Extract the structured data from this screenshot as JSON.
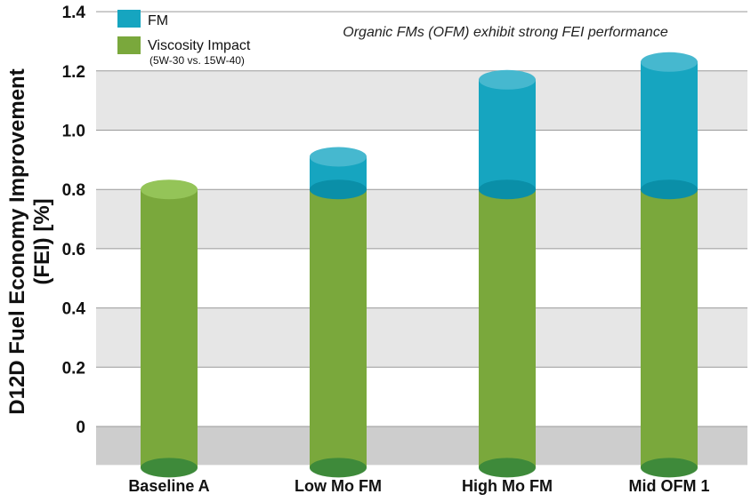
{
  "chart_data": {
    "type": "bar",
    "stacked": true,
    "categories": [
      "Baseline A",
      "Low Mo FM",
      "High Mo FM",
      "Mid OFM 1"
    ],
    "series": [
      {
        "name": "Viscosity Impact",
        "values": [
          0.8,
          0.8,
          0.8,
          0.8
        ],
        "color": "#7aa83c"
      },
      {
        "name": "FM",
        "values": [
          0.0,
          0.11,
          0.37,
          0.43
        ],
        "color": "#16a5c0"
      }
    ],
    "legend": {
      "position": "top-left",
      "entries": [
        {
          "label": "FM",
          "color": "#16a5c0"
        },
        {
          "label": "Viscosity Impact",
          "sublabel": "(5W-30 vs. 15W-40)",
          "color": "#7aa83c"
        }
      ]
    },
    "annotation": "Organic FMs (OFM) exhibit strong FEI performance",
    "ylabel_line1": "D12D Fuel Economy Improvement",
    "ylabel_line2": "(FEI) [%]",
    "xlabel": "",
    "ylim": [
      -0.1,
      1.4
    ],
    "yticks": [
      "0",
      "0.2",
      "0.4",
      "0.6",
      "0.8",
      "1.0",
      "1.2",
      "1.4"
    ],
    "grid": true
  }
}
